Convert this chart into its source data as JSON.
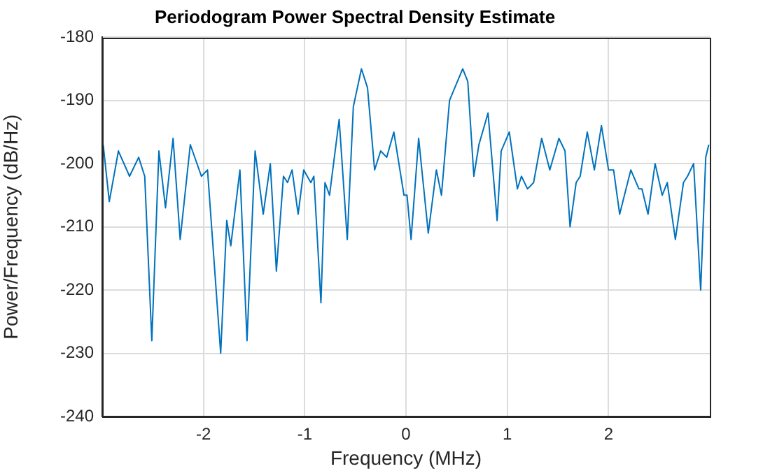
{
  "chart_data": {
    "type": "line",
    "title": "Periodogram Power Spectral Density Estimate",
    "xlabel": "Frequency (MHz)",
    "ylabel": "Power/Frequency (dB/Hz)",
    "xlim": [
      -3,
      3
    ],
    "xticks": [
      -2,
      -1,
      0,
      1,
      2
    ],
    "ylim": [
      -240,
      -180
    ],
    "yticks": [
      -240,
      -230,
      -220,
      -210,
      -200,
      -190,
      -180
    ],
    "grid": true,
    "legend": false,
    "marker": "none",
    "line_style": "solid",
    "series": [
      {
        "color": "#0072bd",
        "x": [
          -2.99,
          -2.93,
          -2.84,
          -2.73,
          -2.64,
          -2.58,
          -2.51,
          -2.44,
          -2.375,
          -2.3,
          -2.23,
          -2.13,
          -2.02,
          -1.96,
          -1.83,
          -1.77,
          -1.73,
          -1.64,
          -1.57,
          -1.49,
          -1.41,
          -1.34,
          -1.28,
          -1.21,
          -1.17,
          -1.125,
          -1.065,
          -1.01,
          -0.94,
          -0.91,
          -0.84,
          -0.8,
          -0.755,
          -0.66,
          -0.58,
          -0.52,
          -0.44,
          -0.38,
          -0.31,
          -0.25,
          -0.19,
          -0.12,
          -0.02,
          0.01,
          0.05,
          0.125,
          0.22,
          0.3,
          0.35,
          0.43,
          0.56,
          0.61,
          0.67,
          0.72,
          0.81,
          0.9,
          0.94,
          1.02,
          1.1,
          1.14,
          1.2,
          1.26,
          1.34,
          1.42,
          1.51,
          1.57,
          1.62,
          1.68,
          1.72,
          1.79,
          1.86,
          1.93,
          2.0,
          2.05,
          2.11,
          2.22,
          2.3,
          2.33,
          2.39,
          2.46,
          2.53,
          2.58,
          2.66,
          2.74,
          2.78,
          2.84,
          2.91,
          2.96,
          2.99
        ],
        "values": [
          -197,
          -206,
          -198,
          -202,
          -199,
          -202,
          -228,
          -198,
          -207,
          -196,
          -212,
          -197,
          -202,
          -201,
          -230,
          -209,
          -213,
          -201,
          -228,
          -198,
          -208,
          -200,
          -217,
          -202,
          -203,
          -201,
          -208,
          -201,
          -203,
          -202,
          -222,
          -203,
          -205,
          -193,
          -212,
          -191,
          -185,
          -188,
          -201,
          -198,
          -199,
          -195,
          -205,
          -205,
          -212,
          -196,
          -211,
          -201,
          -205,
          -190,
          -185,
          -187,
          -202,
          -197,
          -192,
          -209,
          -198,
          -195,
          -204,
          -202,
          -204,
          -203,
          -196,
          -201,
          -196,
          -198,
          -210,
          -203,
          -202,
          -195,
          -201,
          -194,
          -201,
          -201,
          -208,
          -201,
          -204,
          -204,
          -208,
          -200,
          -205,
          -203,
          -212,
          -203,
          -202,
          -200,
          -220,
          -199,
          -197
        ]
      }
    ]
  }
}
